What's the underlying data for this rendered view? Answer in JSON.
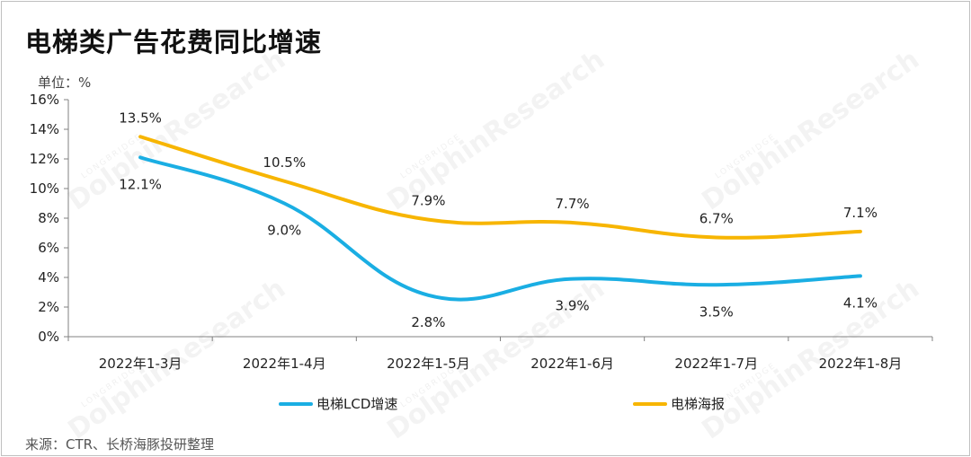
{
  "title": "电梯类广告花费同比增速",
  "unit_label": "单位：%",
  "source": "来源：CTR、长桥海豚投研整理",
  "watermark": {
    "main": "DolphinResearch",
    "sub": "LONGBRIDGE"
  },
  "colors": {
    "lcd": "#1aaee3",
    "poster": "#f7b500",
    "axis": "#808080"
  },
  "chart_data": {
    "type": "line",
    "categories": [
      "2022年1-3月",
      "2022年1-4月",
      "2022年1-5月",
      "2022年1-6月",
      "2022年1-7月",
      "2022年1-8月"
    ],
    "series": [
      {
        "name": "电梯LCD增速",
        "values": [
          12.1,
          9.0,
          2.8,
          3.9,
          3.5,
          4.1
        ],
        "labels": [
          "12.1%",
          "9.0%",
          "2.8%",
          "3.9%",
          "3.5%",
          "4.1%"
        ],
        "label_position": "below"
      },
      {
        "name": "电梯海报",
        "values": [
          13.5,
          10.5,
          7.9,
          7.7,
          6.7,
          7.1
        ],
        "labels": [
          "13.5%",
          "10.5%",
          "7.9%",
          "7.7%",
          "6.7%",
          "7.1%"
        ],
        "label_position": "above"
      }
    ],
    "yticks": [
      "0%",
      "2%",
      "4%",
      "6%",
      "8%",
      "10%",
      "12%",
      "14%",
      "16%"
    ],
    "ylim": [
      0,
      16
    ],
    "legend": "bottom",
    "grid": false,
    "smooth": true
  }
}
